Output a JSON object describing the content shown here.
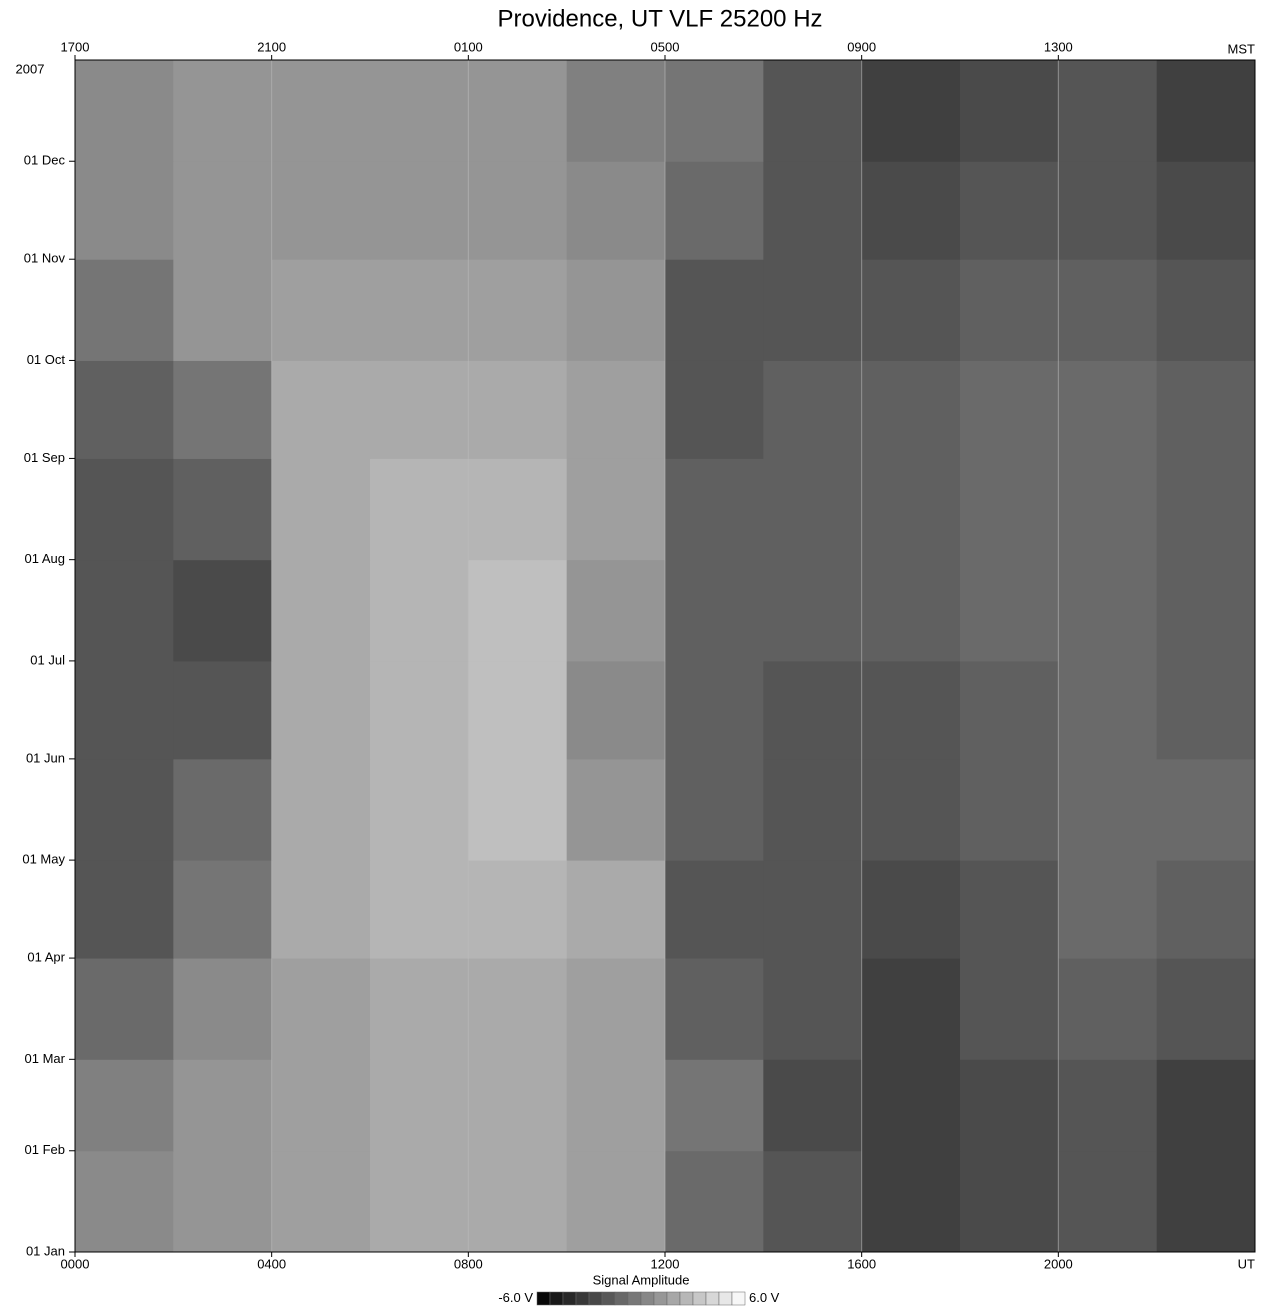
{
  "chart_data": {
    "type": "heatmap",
    "title": "Providence, UT VLF 25200 Hz",
    "x_label": "UT",
    "x2_label": "MST",
    "y_label": "2007",
    "x_bins": [
      0,
      2,
      4,
      6,
      8,
      10,
      12,
      14,
      16,
      18,
      20,
      22,
      24
    ],
    "y_bins": [
      0,
      31,
      59,
      90,
      120,
      151,
      181,
      212,
      243,
      273,
      304,
      334,
      365
    ],
    "xlim": [
      0,
      24
    ],
    "ylim": [
      0,
      365
    ],
    "xticks": [
      {
        "value": 0,
        "label": "0000"
      },
      {
        "value": 4,
        "label": "0400"
      },
      {
        "value": 8,
        "label": "0800"
      },
      {
        "value": 12,
        "label": "1200"
      },
      {
        "value": 16,
        "label": "1600"
      },
      {
        "value": 20,
        "label": "2000"
      }
    ],
    "x2ticks": [
      {
        "value": 0,
        "label": "1700"
      },
      {
        "value": 4,
        "label": "2100"
      },
      {
        "value": 8,
        "label": "0100"
      },
      {
        "value": 12,
        "label": "0500"
      },
      {
        "value": 16,
        "label": "0900"
      },
      {
        "value": 20,
        "label": "1300"
      }
    ],
    "yticks": [
      {
        "value": 0,
        "label": "01 Jan"
      },
      {
        "value": 31,
        "label": "01 Feb"
      },
      {
        "value": 59,
        "label": "01 Mar"
      },
      {
        "value": 90,
        "label": "01 Apr"
      },
      {
        "value": 120,
        "label": "01 May"
      },
      {
        "value": 151,
        "label": "01 Jun"
      },
      {
        "value": 181,
        "label": "01 Jul"
      },
      {
        "value": 212,
        "label": "01 Aug"
      },
      {
        "value": 243,
        "label": "01 Sep"
      },
      {
        "value": 273,
        "label": "01 Oct"
      },
      {
        "value": 304,
        "label": "01 Nov"
      },
      {
        "value": 334,
        "label": "01 Dec"
      }
    ],
    "grid": true,
    "colorbar_label": "Signal Amplitude",
    "zlim": [
      -6,
      6
    ],
    "zticks": [
      {
        "value": -6,
        "label": "-6.0 V"
      },
      {
        "value": 6,
        "label": "6.0 V"
      }
    ],
    "values": [
      [
        0.5,
        1,
        1.5,
        2,
        2,
        1.5,
        -1,
        -2,
        -3,
        -2.5,
        -2,
        -3
      ],
      [
        0,
        1,
        1.5,
        2,
        2,
        1.5,
        -0.5,
        -2.5,
        -3,
        -2.5,
        -2,
        -3
      ],
      [
        -1,
        0.5,
        1.5,
        2,
        2,
        1.5,
        -1.5,
        -2,
        -3,
        -2,
        -1.5,
        -2
      ],
      [
        -2,
        -0.5,
        2,
        2.5,
        2.5,
        2,
        -2,
        -2,
        -2.5,
        -2,
        -1,
        -1.5
      ],
      [
        -2,
        -1,
        2,
        2.5,
        3,
        1,
        -1.5,
        -2,
        -2,
        -1.5,
        -1,
        -1
      ],
      [
        -2,
        -2,
        2,
        2.5,
        3,
        0.5,
        -1.5,
        -2,
        -2,
        -1.5,
        -1,
        -1.5
      ],
      [
        -2,
        -2.5,
        2,
        2.5,
        3,
        1,
        -1.5,
        -1.5,
        -1.5,
        -1,
        -1,
        -1.5
      ],
      [
        -2,
        -1.5,
        2,
        2.5,
        2.5,
        1.5,
        -1.5,
        -1.5,
        -1.5,
        -1,
        -1,
        -1.5
      ],
      [
        -1.5,
        -0.5,
        2,
        2,
        2,
        1.5,
        -2,
        -1.5,
        -1.5,
        -1,
        -1,
        -1.5
      ],
      [
        -0.5,
        1,
        1.5,
        1.5,
        1.5,
        1,
        -2,
        -2,
        -2,
        -1.5,
        -1.5,
        -2
      ],
      [
        0.5,
        1,
        1,
        1,
        1,
        0.5,
        -1,
        -2,
        -2.5,
        -2,
        -2,
        -2.5
      ],
      [
        0.5,
        1,
        1,
        1,
        1,
        0,
        -0.5,
        -2,
        -3,
        -2.5,
        -2,
        -3
      ]
    ]
  }
}
